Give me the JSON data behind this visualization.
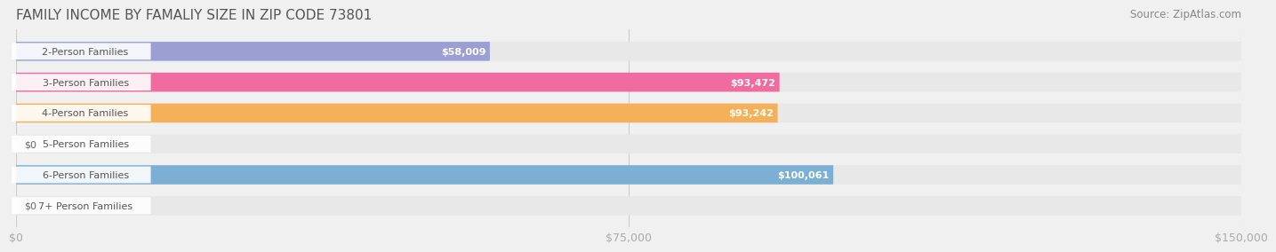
{
  "title": "FAMILY INCOME BY FAMALIY SIZE IN ZIP CODE 73801",
  "source": "Source: ZipAtlas.com",
  "categories": [
    "2-Person Families",
    "3-Person Families",
    "4-Person Families",
    "5-Person Families",
    "6-Person Families",
    "7+ Person Families"
  ],
  "values": [
    58009,
    93472,
    93242,
    0,
    100061,
    0
  ],
  "bar_colors": [
    "#9b9fd4",
    "#f06ba0",
    "#f5b05a",
    "#f4a0a8",
    "#7bafd4",
    "#c8b8d8"
  ],
  "label_values": [
    "$58,009",
    "$93,472",
    "$93,242",
    "$0",
    "$100,061",
    "$0"
  ],
  "xlim": [
    0,
    150000
  ],
  "xticks": [
    0,
    75000,
    150000
  ],
  "xticklabels": [
    "$0",
    "$75,000",
    "$150,000"
  ],
  "bg_color": "#f0f0f0",
  "bar_bg_color": "#e8e8e8",
  "title_color": "#555555",
  "source_color": "#888888",
  "label_color_inside": "#ffffff",
  "label_color_outside": "#666666",
  "bar_height": 0.62,
  "title_fontsize": 11,
  "source_fontsize": 8.5,
  "tick_fontsize": 9,
  "category_fontsize": 8,
  "value_fontsize": 8
}
